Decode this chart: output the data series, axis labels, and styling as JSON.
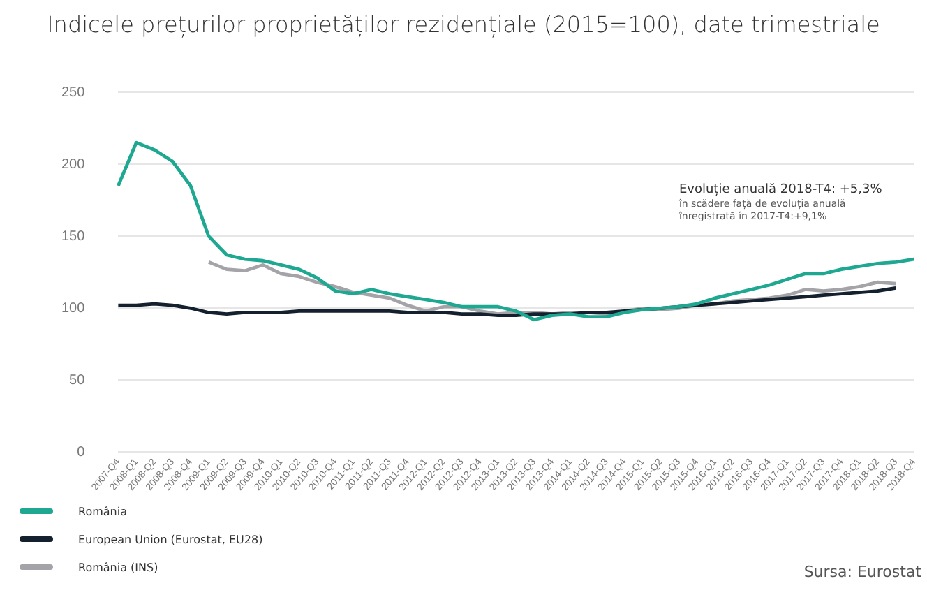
{
  "chart_data": {
    "type": "line",
    "title": "Indicele prețurilor proprietăților rezidențiale (2015=100), date trimestriale",
    "categories": [
      "2007-Q4",
      "2008-Q1",
      "2008-Q2",
      "2008-Q3",
      "2008-Q4",
      "2009-Q1",
      "2009-Q2",
      "2009-Q3",
      "2009-Q4",
      "2010-Q1",
      "2010-Q2",
      "2010-Q3",
      "2010-Q4",
      "2011-Q1",
      "2011-Q2",
      "2011-Q3",
      "2011-Q4",
      "2012-Q1",
      "2012-Q2",
      "2012-Q3",
      "2012-Q4",
      "2013-Q1",
      "2013-Q2",
      "2013-Q3",
      "2013-Q4",
      "2014-Q1",
      "2014-Q2",
      "2014-Q3",
      "2014-Q4",
      "2015-Q1",
      "2015-Q2",
      "2015-Q3",
      "2015-Q4",
      "2016-Q1",
      "2016-Q2",
      "2016-Q3",
      "2016-Q4",
      "2017-Q1",
      "2017-Q2",
      "2017-Q3",
      "2017-Q4",
      "2018-Q1",
      "2018-Q2",
      "2018-Q3",
      "2018-Q4"
    ],
    "series": [
      {
        "name": "România",
        "color": "#1fa891",
        "values": [
          185,
          215,
          210,
          202,
          185,
          150,
          137,
          134,
          133,
          130,
          127,
          121,
          112,
          110,
          113,
          110,
          108,
          106,
          104,
          101,
          101,
          101,
          98,
          92,
          95,
          96,
          94,
          94,
          97,
          99,
          100,
          101,
          103,
          107,
          110,
          113,
          116,
          120,
          124,
          124,
          127,
          129,
          131,
          132,
          134
        ]
      },
      {
        "name": "European Union (Eurostat, EU28)",
        "color": "#14202e",
        "values": [
          102,
          102,
          103,
          102,
          100,
          97,
          96,
          97,
          97,
          97,
          98,
          98,
          98,
          98,
          98,
          98,
          97,
          97,
          97,
          96,
          96,
          95,
          95,
          96,
          96,
          96,
          97,
          97,
          98,
          99,
          100,
          101,
          102,
          103,
          104,
          105,
          106,
          107,
          108,
          109,
          110,
          111,
          112,
          114,
          null
        ]
      },
      {
        "name": "România (INS)",
        "color": "#a3a3a8",
        "values": [
          null,
          null,
          null,
          null,
          null,
          132,
          127,
          126,
          130,
          124,
          122,
          118,
          115,
          111,
          109,
          107,
          102,
          98,
          101,
          101,
          98,
          96,
          97,
          97,
          96,
          97,
          97,
          96,
          98,
          100,
          99,
          100,
          102,
          103,
          105,
          106,
          107,
          109,
          113,
          112,
          113,
          115,
          118,
          117,
          null
        ]
      }
    ],
    "ylim": [
      0,
      250
    ],
    "yticks": [
      0,
      50,
      100,
      150,
      200,
      250
    ],
    "grid": "y",
    "legend": "bottom left",
    "marker": "none",
    "line_style": "solid",
    "annotations": [
      "Evoluție anuală 2018-T4: +5,3%",
      "în scădere față de evoluția anuală",
      "înregistrată în 2017-T4:+9,1%",
      "Sursa: Eurostat"
    ]
  }
}
